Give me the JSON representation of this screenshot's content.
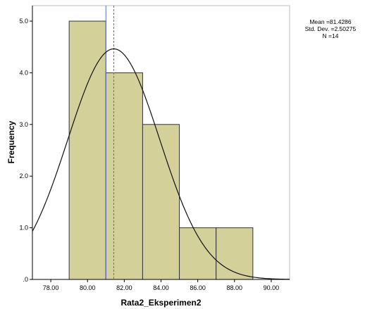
{
  "chart_data": {
    "type": "histogram",
    "xlabel": "Rata2_Eksperimen2",
    "ylabel": "Frequency",
    "xlim": [
      77.0,
      91.0
    ],
    "ylim": [
      0,
      5.3
    ],
    "x_ticks": [
      78,
      80,
      82,
      84,
      86,
      88,
      90
    ],
    "x_tick_labels": [
      "78.00",
      "80.00",
      "82.00",
      "84.00",
      "86.00",
      "88.00",
      "90.00"
    ],
    "y_ticks": [
      0,
      1,
      2,
      3,
      4,
      5
    ],
    "y_tick_labels": [
      ".0",
      "1.0",
      "2.0",
      "3.0",
      "4.0",
      "5.0"
    ],
    "bins": [
      {
        "start": 79,
        "end": 81,
        "count": 5
      },
      {
        "start": 81,
        "end": 83,
        "count": 4
      },
      {
        "start": 83,
        "end": 85,
        "count": 3
      },
      {
        "start": 85,
        "end": 87,
        "count": 1
      },
      {
        "start": 87,
        "end": 89,
        "count": 1
      }
    ],
    "bar_color": "#d4d09a",
    "normal_curve": {
      "mean": 81.4286,
      "std_dev": 2.50275,
      "n": 14
    },
    "reference_lines": [
      {
        "x": 81.0,
        "color": "#5b6fd6",
        "style": "solid"
      },
      {
        "x": 81.4286,
        "color": "#e0403a",
        "style": "dashed"
      }
    ],
    "grid": false,
    "legend": {
      "position": "top-right",
      "mean_label": "Mean =81.4286",
      "std_label": "Std. Dev. =2.50275",
      "n_label": "N =14"
    }
  }
}
